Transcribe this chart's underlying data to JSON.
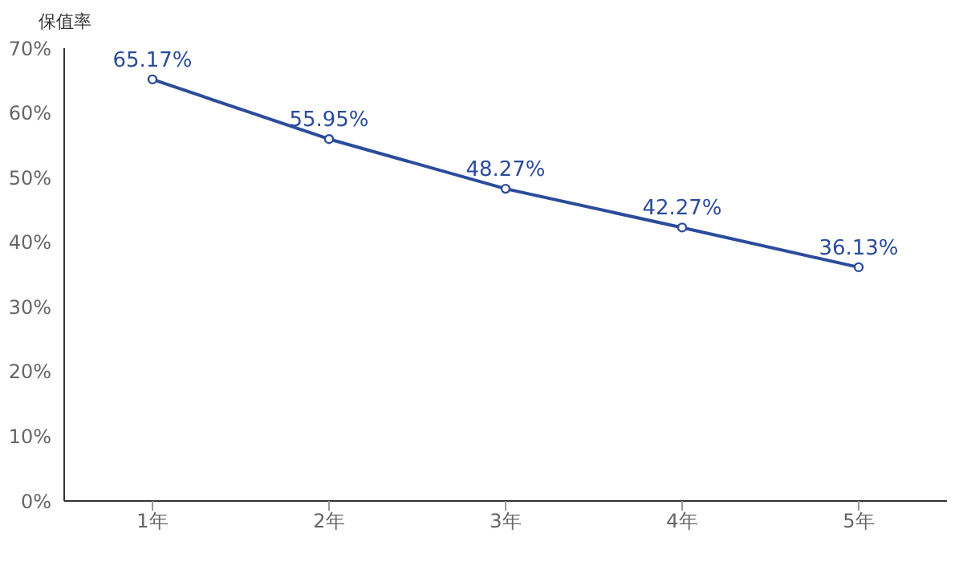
{
  "chart_data": {
    "type": "line",
    "ylabel": "保值率",
    "categories": [
      "1年",
      "2年",
      "3年",
      "4年",
      "5年"
    ],
    "series": [
      {
        "color": "#2b4c9b",
        "values": [
          65.17,
          55.95,
          48.27,
          42.27,
          36.13
        ],
        "value_labels": [
          "65.17%",
          "55.95%",
          "48.27%",
          "42.27%",
          "36.13%"
        ]
      }
    ],
    "ylim": [
      0,
      70
    ],
    "yticks": [
      {
        "value": 0,
        "label": "0%"
      },
      {
        "value": 10,
        "label": "10%"
      },
      {
        "value": 20,
        "label": "20%"
      },
      {
        "value": 30,
        "label": "30%"
      },
      {
        "value": 40,
        "label": "40%"
      },
      {
        "value": 50,
        "label": "50%"
      },
      {
        "value": 60,
        "label": "60%"
      },
      {
        "value": 70,
        "label": "70%"
      }
    ],
    "grid": false,
    "legend": false,
    "marker": "circle",
    "line_style": "solid"
  }
}
